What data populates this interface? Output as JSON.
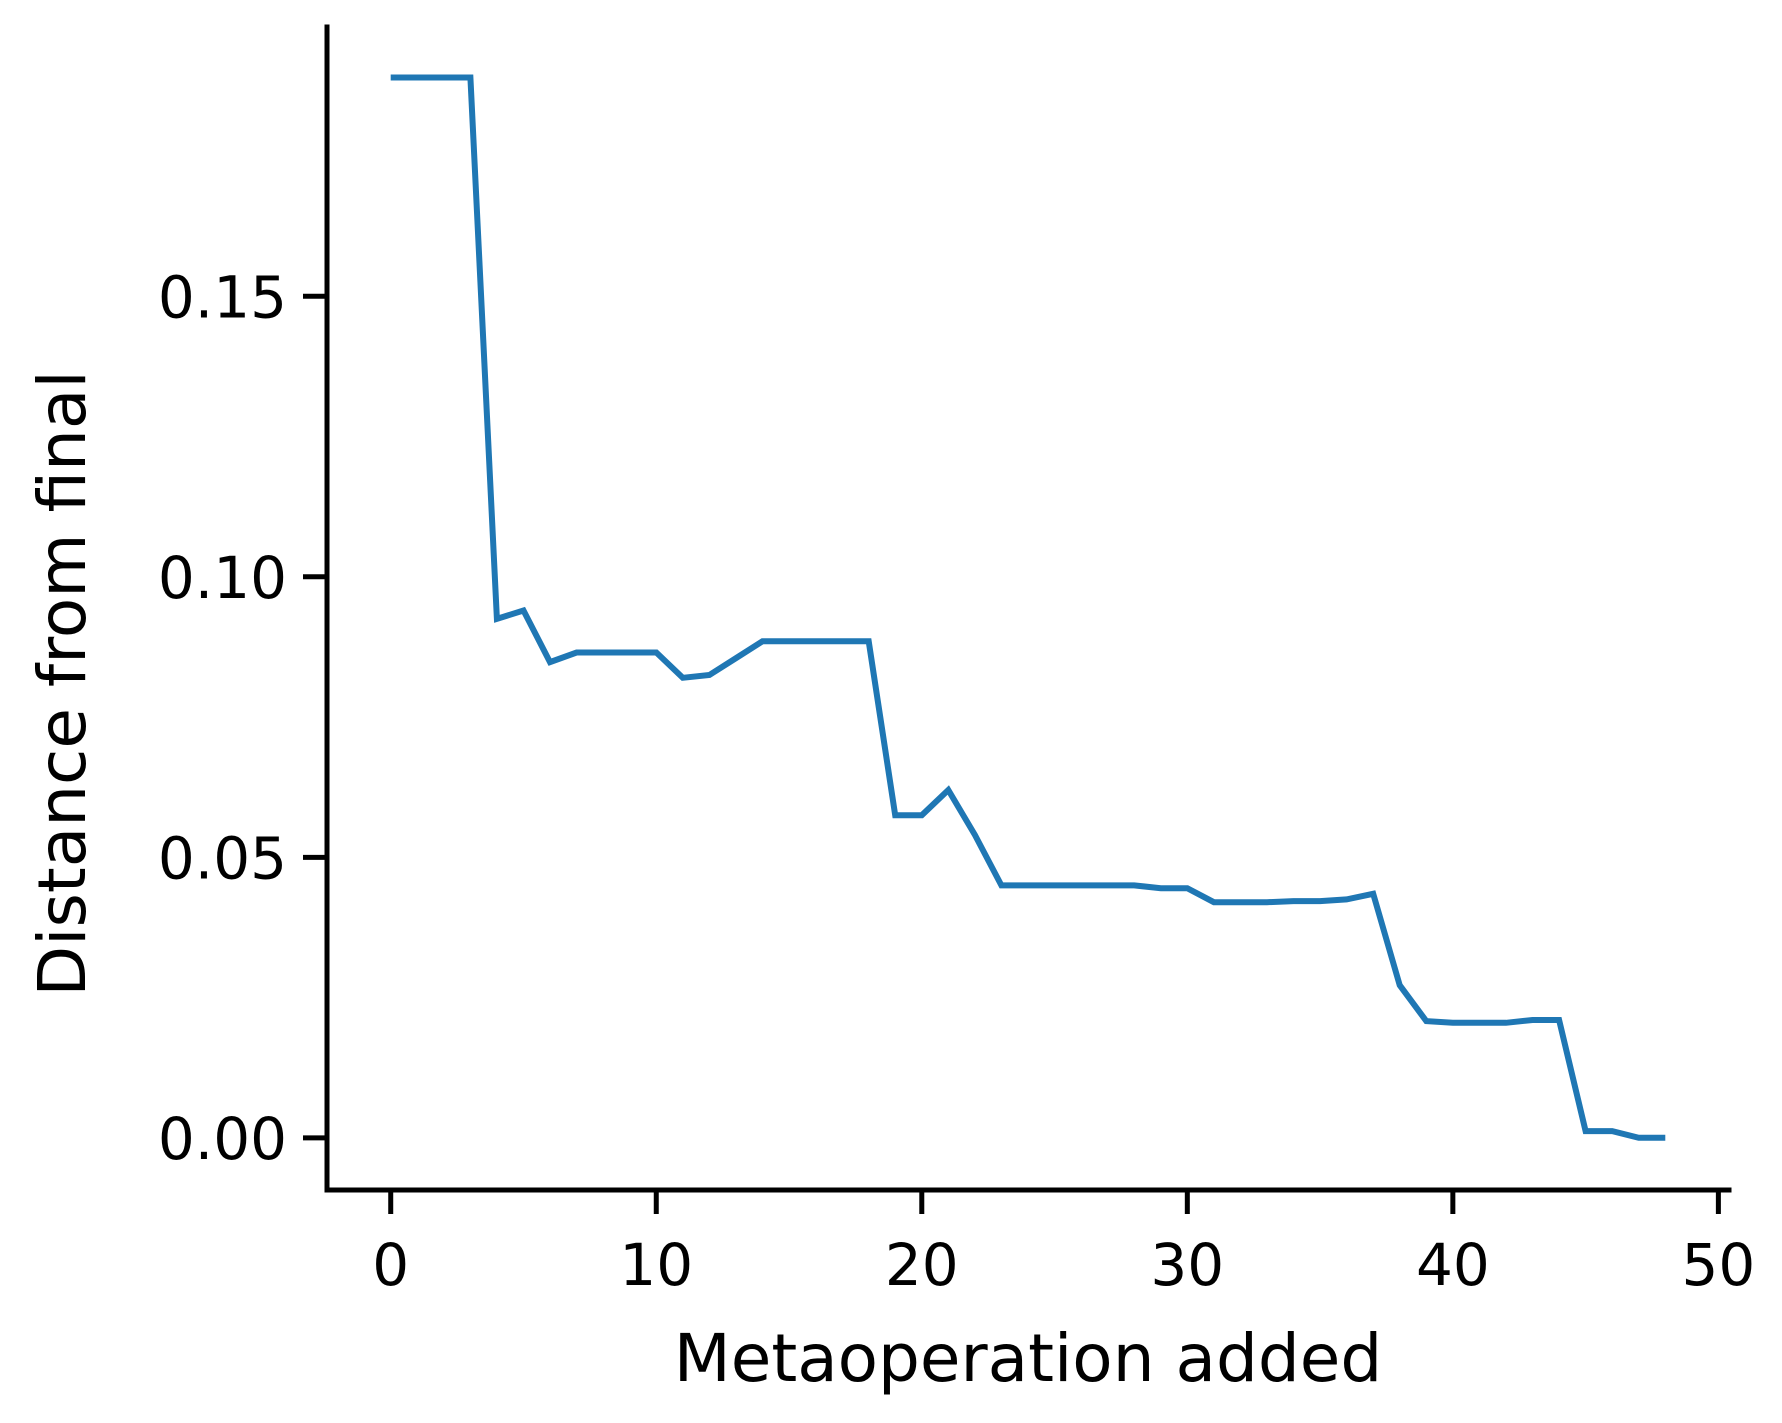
{
  "chart_data": {
    "type": "line",
    "title": "",
    "xlabel": "Metaoperation added",
    "ylabel": "Distance from final",
    "xlim": [
      -2.4,
      50.4
    ],
    "ylim": [
      -0.0093,
      0.198
    ],
    "xticks": [
      0,
      10,
      20,
      30,
      40,
      50
    ],
    "xtick_labels": [
      "0",
      "10",
      "20",
      "30",
      "40",
      "50"
    ],
    "yticks": [
      0.0,
      0.05,
      0.1,
      0.15
    ],
    "ytick_labels": [
      "0.00",
      "0.05",
      "0.10",
      "0.15"
    ],
    "grid": false,
    "legend": "none",
    "series": [
      {
        "name": "distance",
        "color": "#1f77b4",
        "x": [
          0,
          1,
          2,
          3,
          4,
          5,
          6,
          7,
          8,
          9,
          10,
          11,
          12,
          13,
          14,
          15,
          16,
          17,
          18,
          19,
          20,
          21,
          22,
          23,
          24,
          25,
          26,
          27,
          28,
          29,
          30,
          31,
          32,
          33,
          34,
          35,
          36,
          37,
          38,
          39,
          40,
          41,
          42,
          43,
          44,
          45,
          46,
          47,
          48
        ],
        "y": [
          0.189,
          0.189,
          0.189,
          0.189,
          0.0925,
          0.094,
          0.0848,
          0.0865,
          0.0865,
          0.0865,
          0.0865,
          0.082,
          0.0825,
          0.0855,
          0.0885,
          0.0885,
          0.0885,
          0.0885,
          0.0885,
          0.0575,
          0.0575,
          0.062,
          0.054,
          0.045,
          0.045,
          0.045,
          0.045,
          0.045,
          0.045,
          0.0445,
          0.0445,
          0.042,
          0.042,
          0.042,
          0.0422,
          0.0422,
          0.0425,
          0.0435,
          0.0272,
          0.0208,
          0.0205,
          0.0205,
          0.0205,
          0.021,
          0.021,
          0.0012,
          0.0012,
          0.0,
          0.0
        ]
      }
    ]
  }
}
